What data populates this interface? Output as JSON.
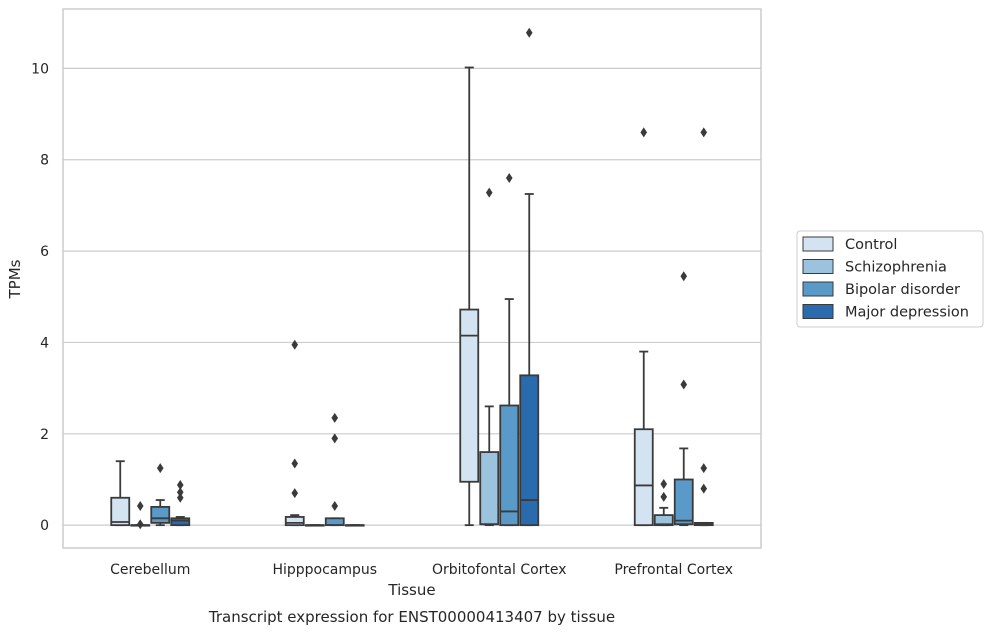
{
  "chart_data": {
    "type": "box",
    "title": "Transcript expression for ENST00000413407 by tissue",
    "xlabel": "Tissue",
    "ylabel": "TPMs",
    "ylim": [
      -0.5,
      11.3
    ],
    "yticks": [
      0,
      2,
      4,
      6,
      8,
      10
    ],
    "grid": true,
    "legend_position": "right",
    "categories": [
      "Cerebellum",
      "Hipppocampus",
      "Orbitofontal Cortex",
      "Prefrontal Cortex"
    ],
    "series": [
      {
        "name": "Control",
        "color": "#d4e3f1",
        "boxes": [
          {
            "whislo": 0.0,
            "q1": 0.0,
            "med": 0.07,
            "q3": 0.6,
            "whishi": 1.4,
            "fliers": []
          },
          {
            "whislo": 0.0,
            "q1": 0.0,
            "med": 0.05,
            "q3": 0.18,
            "whishi": 0.22,
            "fliers": [
              3.95,
              1.35,
              0.7
            ]
          },
          {
            "whislo": 0.0,
            "q1": 0.95,
            "med": 4.15,
            "q3": 4.72,
            "whishi": 10.02,
            "fliers": []
          },
          {
            "whislo": 0.0,
            "q1": 0.0,
            "med": 0.87,
            "q3": 2.1,
            "whishi": 3.8,
            "fliers": [
              8.6
            ]
          }
        ]
      },
      {
        "name": "Schizophrenia",
        "color": "#9cc3dd",
        "boxes": [
          {
            "whislo": 0.0,
            "q1": 0.0,
            "med": 0.0,
            "q3": 0.0,
            "whishi": 0.0,
            "fliers": [
              0.42,
              0.02
            ]
          },
          {
            "whislo": 0.0,
            "q1": 0.0,
            "med": 0.0,
            "q3": 0.0,
            "whishi": 0.0,
            "fliers": []
          },
          {
            "whislo": 0.0,
            "q1": 0.02,
            "med": 0.02,
            "q3": 1.6,
            "whishi": 2.6,
            "fliers": [
              7.28
            ]
          },
          {
            "whislo": 0.0,
            "q1": 0.0,
            "med": 0.02,
            "q3": 0.22,
            "whishi": 0.38,
            "fliers": [
              0.9,
              0.62
            ]
          }
        ]
      },
      {
        "name": "Bipolar disorder",
        "color": "#5a9ac8",
        "boxes": [
          {
            "whislo": 0.0,
            "q1": 0.05,
            "med": 0.15,
            "q3": 0.4,
            "whishi": 0.55,
            "fliers": [
              1.25
            ]
          },
          {
            "whislo": 0.0,
            "q1": 0.0,
            "med": 0.0,
            "q3": 0.15,
            "whishi": 0.15,
            "fliers": [
              2.35,
              1.9,
              0.42
            ]
          },
          {
            "whislo": 0.0,
            "q1": 0.0,
            "med": 0.3,
            "q3": 2.62,
            "whishi": 4.95,
            "fliers": [
              7.6
            ]
          },
          {
            "whislo": 0.0,
            "q1": 0.02,
            "med": 0.1,
            "q3": 1.0,
            "whishi": 1.68,
            "fliers": [
              5.45,
              3.08
            ]
          }
        ]
      },
      {
        "name": "Major depression",
        "color": "#2a6bad",
        "boxes": [
          {
            "whislo": 0.0,
            "q1": 0.0,
            "med": 0.1,
            "q3": 0.15,
            "whishi": 0.18,
            "fliers": [
              0.88,
              0.72,
              0.6
            ]
          },
          {
            "whislo": 0.0,
            "q1": 0.0,
            "med": 0.0,
            "q3": 0.0,
            "whishi": 0.0,
            "fliers": []
          },
          {
            "whislo": 0.0,
            "q1": 0.0,
            "med": 0.55,
            "q3": 3.28,
            "whishi": 7.25,
            "fliers": [
              10.78
            ]
          },
          {
            "whislo": 0.0,
            "q1": 0.0,
            "med": 0.02,
            "q3": 0.05,
            "whishi": 0.05,
            "fliers": [
              8.6,
              1.25,
              0.8
            ]
          }
        ]
      }
    ]
  }
}
